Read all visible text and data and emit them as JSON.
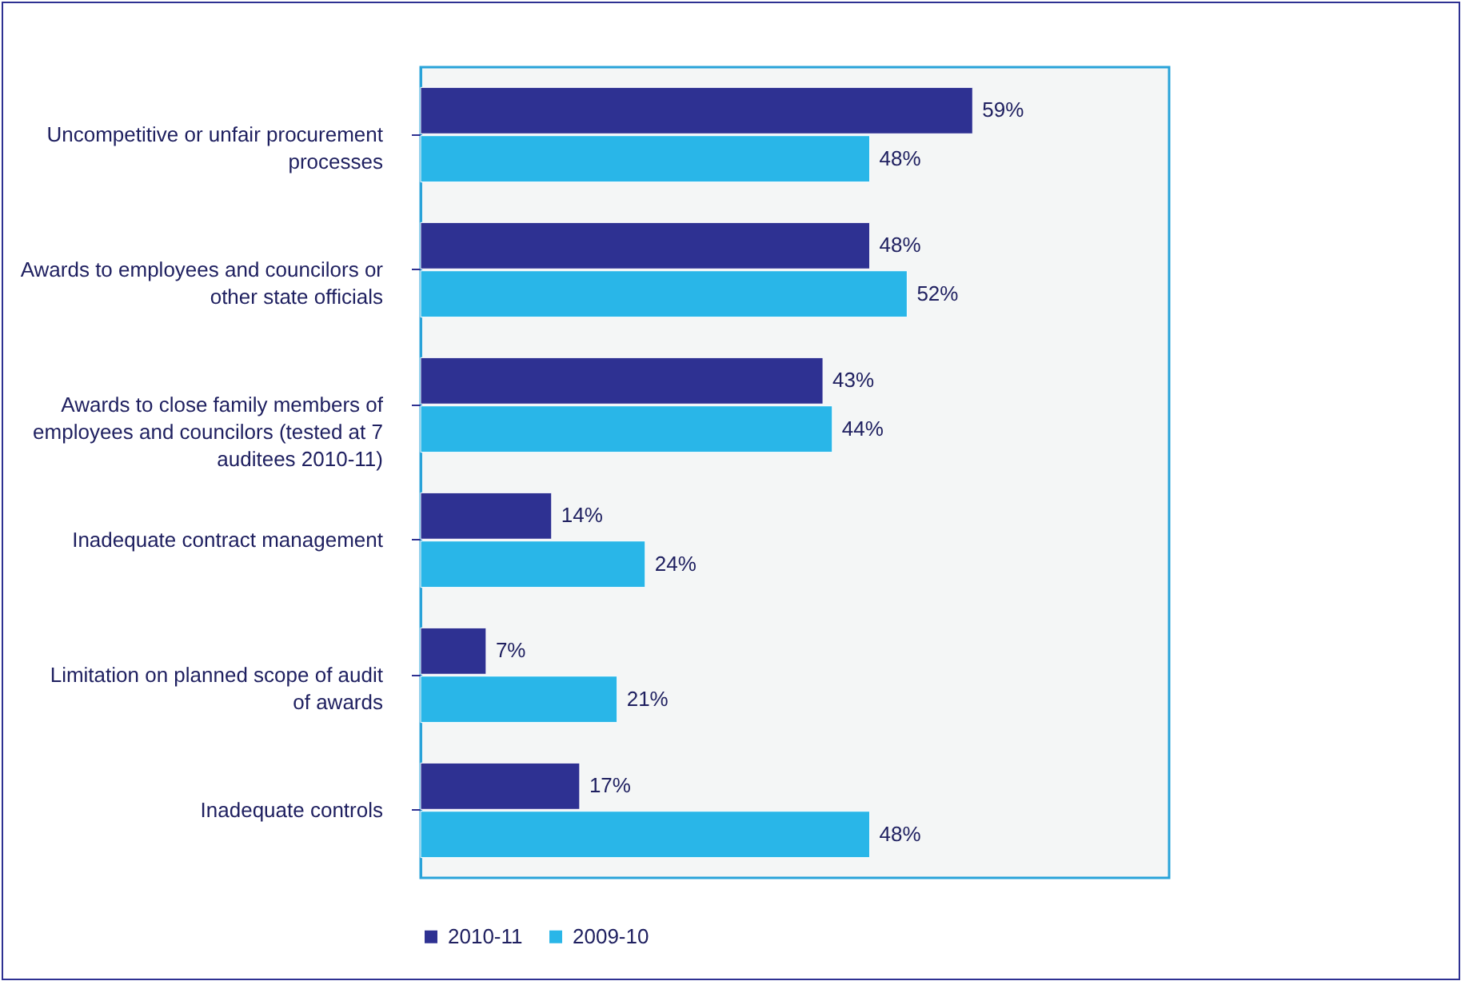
{
  "chart_data": {
    "type": "bar",
    "orientation": "horizontal",
    "categories": [
      "Uncompetitive or unfair procurement processes",
      "Awards to employees and councilors or other state officials",
      "Awards to close family members of employees and councilors (tested at 7 auditees 2010-11)",
      "Inadequate contract management",
      "Limitation on planned scope of audit of awards",
      "Inadequate controls"
    ],
    "series": [
      {
        "name": "2010-11",
        "color": "#2e3192",
        "values": [
          59,
          48,
          43,
          14,
          7,
          17
        ],
        "value_labels": [
          "59%",
          "48%",
          "43%",
          "14%",
          "7%",
          "17%"
        ]
      },
      {
        "name": "2009-10",
        "color": "#29b6e8",
        "values": [
          48,
          52,
          44,
          24,
          21,
          48
        ],
        "value_labels": [
          "48%",
          "52%",
          "44%",
          "24%",
          "21%",
          "48%"
        ]
      }
    ],
    "xlim": [
      0,
      80
    ],
    "legend": "bottom"
  }
}
